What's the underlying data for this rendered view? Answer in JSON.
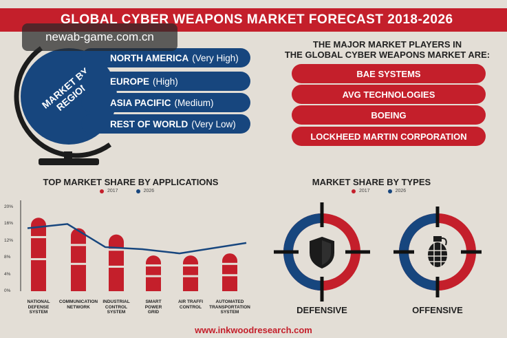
{
  "title": "GLOBAL CYBER WEAPONS MARKET FORECAST 2018-2026",
  "watermark": "newab-game.com.cn",
  "globe_label": "MARKET BY REGION",
  "regions": [
    {
      "name": "NORTH AMERICA",
      "level": "(Very High)"
    },
    {
      "name": "EUROPE",
      "level": "(High)"
    },
    {
      "name": "ASIA PACIFIC",
      "level": "(Medium)"
    },
    {
      "name": "REST OF WORLD",
      "level": "(Very Low)"
    }
  ],
  "players_heading_line1": "THE MAJOR MARKET PLAYERS IN",
  "players_heading_line2": "THE GLOBAL CYBER WEAPONS MARKET ARE:",
  "players": [
    "BAE SYSTEMS",
    "AVG TECHNOLOGIES",
    "BOEING",
    "LOCKHEED MARTIN CORPORATION"
  ],
  "types_heading": "MARKET SHARE BY TYPES",
  "types_legend": [
    "2017",
    "2026"
  ],
  "types": [
    {
      "label": "DEFENSIVE",
      "icon": "shield-icon"
    },
    {
      "label": "OFFENSIVE",
      "icon": "grenade-icon"
    }
  ],
  "footer": "www.inkwoodresearch.com",
  "colors": {
    "red": "#c41f2b",
    "blue": "#17467e",
    "background": "#e3ded6"
  },
  "chart_data": {
    "type": "bar",
    "title": "TOP MARKET SHARE BY APPLICATIONS",
    "categories": [
      [
        "NATIONAL",
        "DEFENSE",
        "SYSTEM"
      ],
      [
        "COMMUNICATION",
        "NETWORK"
      ],
      [
        "INDUSTRIAL",
        "CONTROL",
        "SYSTEM"
      ],
      [
        "SMART",
        "POWER",
        "GRID"
      ],
      [
        "AIR TRAFFI",
        "CONTROL"
      ],
      [
        "AUTOMATED",
        "TRANSPORTATION",
        "SYSTEM"
      ]
    ],
    "series": [
      {
        "name": "2017",
        "type": "bar",
        "color": "#c41f2b",
        "values": [
          17.5,
          15,
          13.5,
          8.5,
          8.5,
          9
        ]
      },
      {
        "name": "2026",
        "type": "line",
        "color": "#17467e",
        "values": [
          15,
          16,
          10.5,
          10,
          9,
          11.5
        ]
      }
    ],
    "yticks": [
      "20%",
      "16%",
      "12%",
      "8%",
      "4%",
      "0%"
    ],
    "ylim": [
      0,
      20
    ],
    "grid": false,
    "legend": "top-center"
  }
}
